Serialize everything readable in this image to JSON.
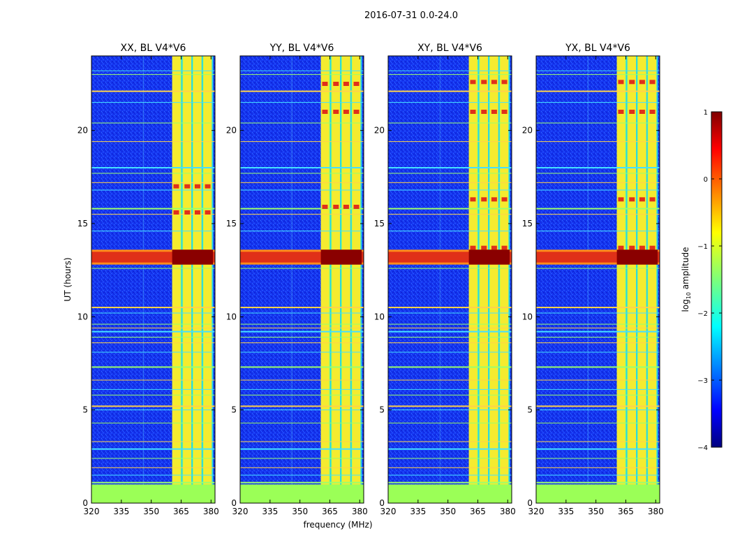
{
  "figure_title": "2016-07-31 0.0-24.0",
  "chart_data": {
    "type": "heatmap",
    "title": "2016-07-31 0.0-24.0",
    "xlabel": "frequency (MHz)",
    "ylabel": "UT (hours)",
    "xlim": [
      320,
      382
    ],
    "ylim": [
      0,
      24
    ],
    "xticks": [
      320,
      335,
      350,
      365,
      380
    ],
    "yticks": [
      0,
      5,
      10,
      15,
      20
    ],
    "panels": [
      {
        "title": "XX, BL V4*V6",
        "strong_block_mhz": [
          360.5,
          381
        ],
        "rfi_dots_at_hours": [
          17.0,
          15.6
        ],
        "vertical_line_mhz": 346
      },
      {
        "title": "YY, BL V4*V6",
        "strong_block_mhz": [
          360.5,
          381
        ],
        "rfi_dots_at_hours": [
          22.5,
          21.0,
          15.9
        ],
        "vertical_line_mhz": 346
      },
      {
        "title": "XY, BL V4*V6",
        "strong_block_mhz": [
          360.5,
          381
        ],
        "rfi_dots_at_hours": [
          22.6,
          21.0,
          16.3,
          13.7
        ],
        "vertical_line_mhz": 346
      },
      {
        "title": "YX, BL V4*V6",
        "strong_block_mhz": [
          360.5,
          381
        ],
        "rfi_dots_at_hours": [
          22.6,
          21.0,
          16.3,
          13.7
        ],
        "vertical_line_mhz": 346
      }
    ],
    "flagged_range_hours": [
      0,
      1.0
    ],
    "strong_rfi_band_hours": [
      12.8,
      13.6
    ],
    "horizontal_rfi_lines_hours": [
      1.1,
      1.5,
      1.9,
      2.4,
      2.9,
      3.3,
      4.3,
      5.0,
      5.2,
      5.8,
      6.1,
      6.6,
      7.3,
      8.1,
      8.6,
      8.9,
      9.2,
      9.4,
      9.6,
      10.2,
      10.5,
      12.6,
      14.6,
      15.5,
      15.8,
      16.8,
      17.2,
      17.7,
      18.0,
      19.4,
      20.4,
      21.5,
      22.1,
      23.0,
      23.2
    ],
    "colorbar": {
      "label": "log10 amplitude",
      "label_main": "log",
      "label_sub": "10",
      "label_tail": " amplitude",
      "range": [
        -4,
        1
      ],
      "ticks": [
        "1",
        "0",
        "−1",
        "−2",
        "−3",
        "−4"
      ],
      "tick_values": [
        1,
        0,
        -1,
        -2,
        -3,
        -4
      ],
      "colormap": "jet"
    }
  }
}
